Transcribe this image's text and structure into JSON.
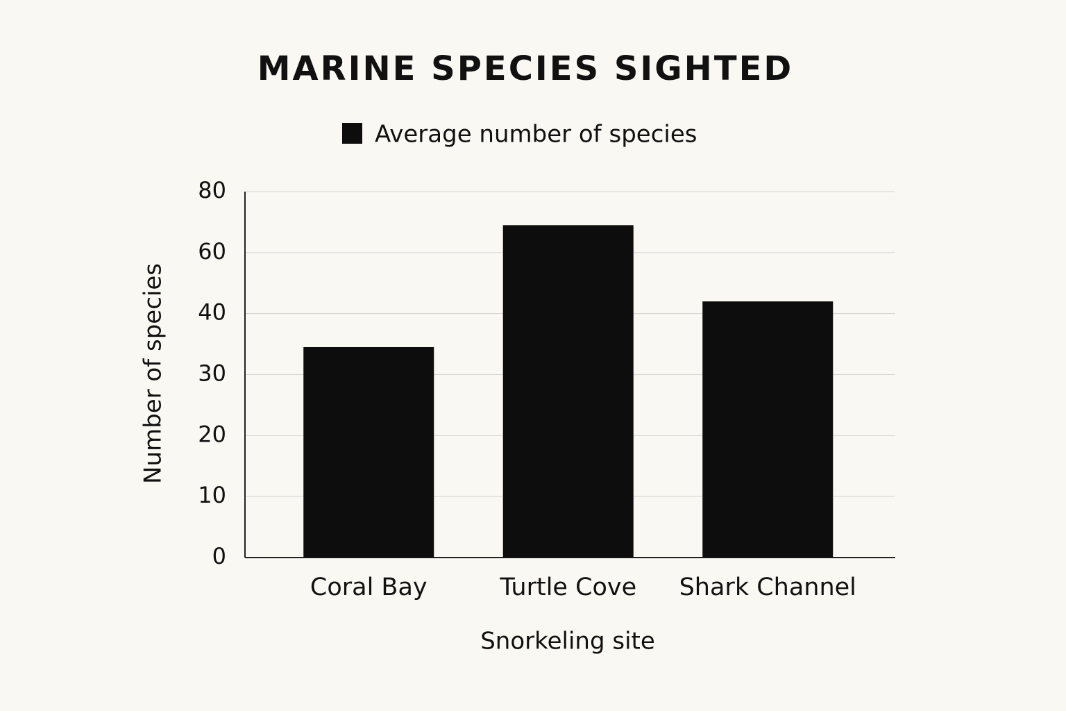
{
  "chart_data": {
    "type": "bar",
    "title": "MARINE SPECIES SIGHTED",
    "categories": [
      "Coral Bay",
      "Turtle Cove",
      "Shark Channel"
    ],
    "series": [
      {
        "name": "Average number of species",
        "color": "#0d0d0d",
        "values": [
          34.5,
          69,
          44
        ]
      }
    ],
    "x_label": "Snorkeling site",
    "y_label": "Number of species",
    "ylim": [
      0,
      80
    ],
    "yticks": [
      0,
      10,
      20,
      30,
      40,
      60,
      80
    ],
    "grid": true,
    "legend": "top"
  }
}
